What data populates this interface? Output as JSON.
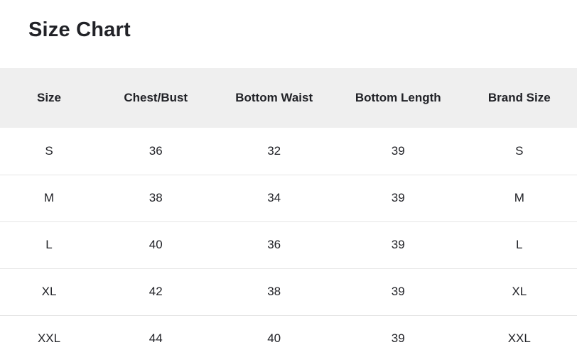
{
  "page": {
    "title": "Size Chart"
  },
  "table": {
    "columns": [
      {
        "label": "Size"
      },
      {
        "label": "Chest/Bust"
      },
      {
        "label": "Bottom Waist"
      },
      {
        "label": "Bottom Length"
      },
      {
        "label": "Brand Size"
      }
    ],
    "rows": [
      [
        "S",
        "36",
        "32",
        "39",
        "S"
      ],
      [
        "M",
        "38",
        "34",
        "39",
        "M"
      ],
      [
        "L",
        "40",
        "36",
        "39",
        "L"
      ],
      [
        "XL",
        "42",
        "38",
        "39",
        "XL"
      ],
      [
        "XXL",
        "44",
        "40",
        "39",
        "XXL"
      ]
    ]
  },
  "colors": {
    "page_bg": "#ffffff",
    "header_bg": "#efefef",
    "text": "#212227",
    "divider": "#e6e6e6"
  }
}
